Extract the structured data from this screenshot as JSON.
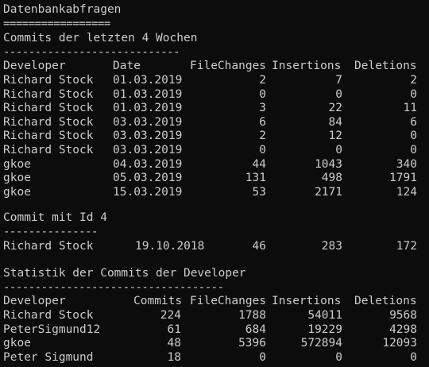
{
  "window": {
    "type": "console-output"
  },
  "title": "Datenbankabfragen",
  "title_rule": "=================",
  "section1": {
    "heading": "Commits der letzten 4 Wochen",
    "rule": "----------------------------",
    "headers": [
      "Developer",
      "Date",
      "FileChanges",
      "Insertions",
      "Deletions"
    ],
    "rows": [
      [
        "Richard Stock",
        "01.03.2019",
        "2",
        "7",
        "2"
      ],
      [
        "Richard Stock",
        "01.03.2019",
        "0",
        "0",
        "0"
      ],
      [
        "Richard Stock",
        "01.03.2019",
        "3",
        "22",
        "11"
      ],
      [
        "Richard Stock",
        "03.03.2019",
        "6",
        "84",
        "6"
      ],
      [
        "Richard Stock",
        "03.03.2019",
        "2",
        "12",
        "0"
      ],
      [
        "Richard Stock",
        "03.03.2019",
        "0",
        "0",
        "0"
      ],
      [
        "gkoe",
        "04.03.2019",
        "44",
        "1043",
        "340"
      ],
      [
        "gkoe",
        "05.03.2019",
        "131",
        "498",
        "1791"
      ],
      [
        "gkoe",
        "15.03.2019",
        "53",
        "2171",
        "124"
      ]
    ]
  },
  "section2": {
    "heading": "Commit mit Id 4",
    "rule": "---------------",
    "row": [
      "Richard Stock",
      "19.10.2018",
      "46",
      "283",
      "172"
    ]
  },
  "section3": {
    "heading": "Statistik der Commits der Developer",
    "rule": "-----------------------------------",
    "headers": [
      "Developer",
      "Commits",
      "FileChanges",
      "Insertions",
      "Deletions"
    ],
    "rows": [
      [
        "Richard Stock",
        "224",
        "1788",
        "54011",
        "9568"
      ],
      [
        "PeterSigmund12",
        "61",
        "684",
        "19229",
        "4298"
      ],
      [
        "gkoe",
        "48",
        "5396",
        "572894",
        "12093"
      ],
      [
        "Peter Sigmund",
        "18",
        "0",
        "0",
        "0"
      ]
    ]
  }
}
